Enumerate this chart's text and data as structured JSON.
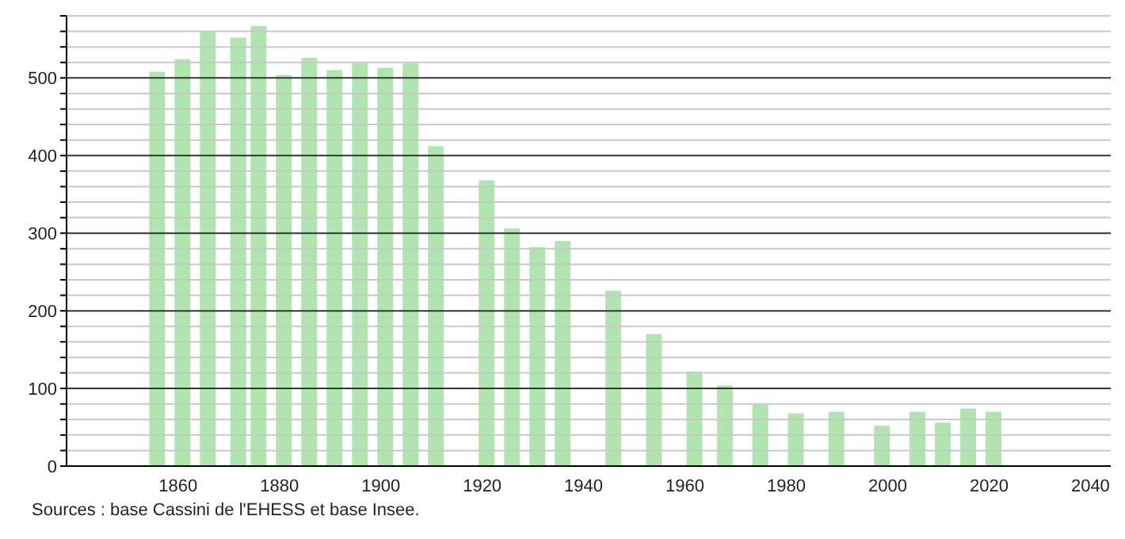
{
  "chart_data": {
    "type": "bar",
    "x": [
      1856,
      1861,
      1866,
      1872,
      1876,
      1881,
      1886,
      1891,
      1896,
      1901,
      1906,
      1911,
      1921,
      1926,
      1931,
      1936,
      1946,
      1954,
      1962,
      1968,
      1975,
      1982,
      1990,
      1999,
      2006,
      2011,
      2016,
      2021
    ],
    "values": [
      508,
      524,
      560,
      552,
      567,
      504,
      526,
      510,
      519,
      513,
      519,
      412,
      368,
      306,
      282,
      290,
      226,
      170,
      122,
      104,
      80,
      68,
      70,
      52,
      70,
      56,
      74,
      70
    ],
    "color": "#b0e5b0",
    "xlim": [
      1838,
      2044
    ],
    "xticks": [
      1860,
      1880,
      1900,
      1920,
      1940,
      1960,
      1980,
      2000,
      2020,
      2040
    ],
    "ylim": [
      0,
      580
    ],
    "yticks": [
      0,
      {
        "value": 20,
        "label": null
      },
      {
        "value": 40,
        "label": null
      },
      {
        "value": 60,
        "label": null
      },
      {
        "value": 80,
        "label": null
      },
      100,
      {
        "value": 120,
        "label": null
      },
      {
        "value": 140,
        "label": null
      },
      {
        "value": 160,
        "label": null
      },
      {
        "value": 180,
        "label": null
      },
      200,
      {
        "value": 220,
        "label": null
      },
      {
        "value": 240,
        "label": null
      },
      {
        "value": 260,
        "label": null
      },
      {
        "value": 280,
        "label": null
      },
      300,
      {
        "value": 320,
        "label": null
      },
      {
        "value": 340,
        "label": null
      },
      {
        "value": 360,
        "label": null
      },
      {
        "value": 380,
        "label": null
      },
      400,
      {
        "value": 420,
        "label": null
      },
      {
        "value": 440,
        "label": null
      },
      {
        "value": 460,
        "label": null
      },
      {
        "value": 480,
        "label": null
      },
      500,
      {
        "value": 520,
        "label": null
      },
      {
        "value": 540,
        "label": null
      },
      {
        "value": 560,
        "label": null
      },
      {
        "value": 580,
        "label": null
      }
    ],
    "grid": "y",
    "annotations": [
      "Sources : base Cassini de l'EHESS et base Insee."
    ]
  }
}
